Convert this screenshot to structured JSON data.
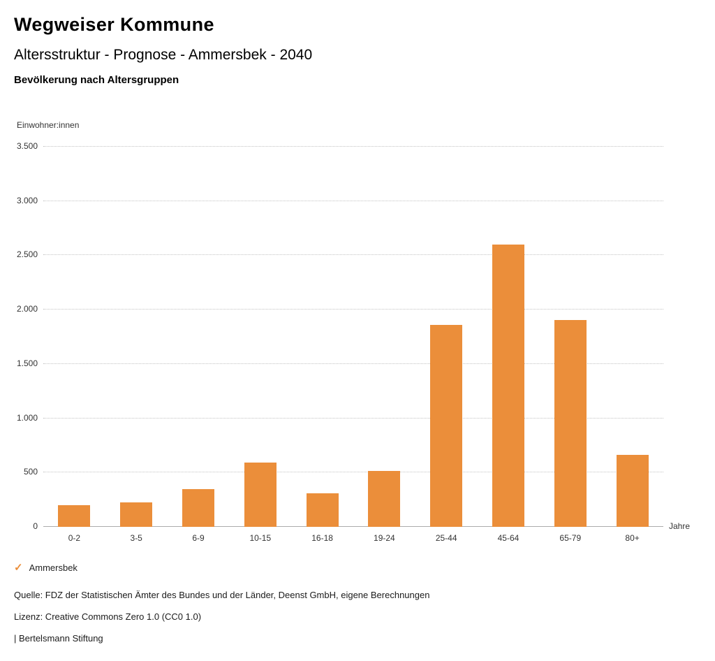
{
  "header": {
    "title": "Wegweiser Kommune",
    "subtitle": "Altersstruktur - Prognose - Ammersbek - 2040",
    "chart_title": "Bevölkerung nach Altersgruppen"
  },
  "chart_data": {
    "type": "bar",
    "title": "Bevölkerung nach Altersgruppen",
    "categories": [
      "0-2",
      "3-5",
      "6-9",
      "10-15",
      "16-18",
      "19-24",
      "25-44",
      "45-64",
      "65-79",
      "80+"
    ],
    "values": [
      200,
      225,
      350,
      590,
      310,
      515,
      1860,
      2600,
      1905,
      660
    ],
    "series_name": "Ammersbek",
    "xlabel": "Jahre",
    "ylabel": "Einwohner:innen",
    "ylim": [
      0,
      3500
    ],
    "ytick_values": [
      0,
      500,
      1000,
      1500,
      2000,
      2500,
      3000,
      3500
    ],
    "ytick_labels": [
      "0",
      "500",
      "1.000",
      "1.500",
      "2.000",
      "2.500",
      "3.000",
      "3.500"
    ],
    "grid": "horizontal-dotted",
    "bar_color": "#EB8E3A",
    "legend_position": "bottom-left"
  },
  "legend": {
    "check_icon": "✓",
    "label": "Ammersbek"
  },
  "footer": {
    "source": "Quelle: FDZ der Statistischen Ämter des Bundes und der Länder, Deenst GmbH, eigene Berechnungen",
    "license": "Lizenz: Creative Commons Zero 1.0 (CC0 1.0)",
    "brand": "| Bertelsmann Stiftung"
  }
}
